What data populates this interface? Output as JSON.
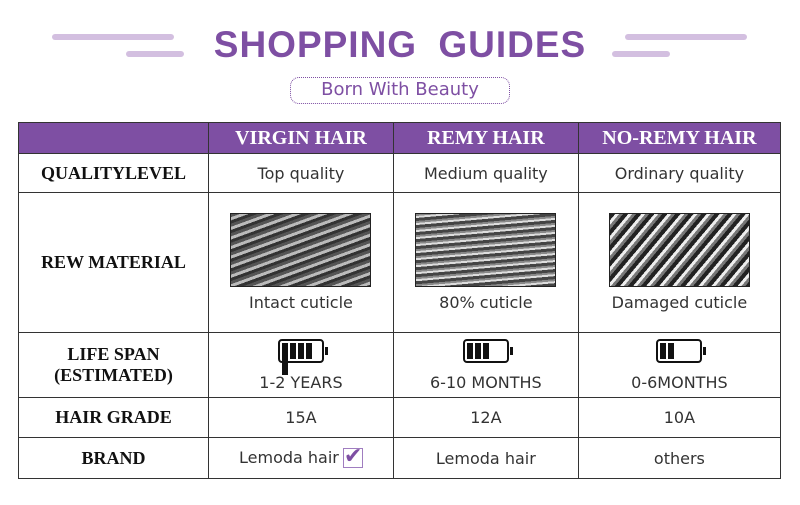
{
  "header": {
    "title": "SHOPPING GUIDES",
    "subtitle": "Born With Beauty"
  },
  "colors": {
    "accent": "#7e4fa3"
  },
  "table": {
    "columns": [
      "VIRGIN HAIR",
      "REMY HAIR",
      "NO-REMY HAIR"
    ],
    "rows": {
      "quality": {
        "label": "QUALITYLEVEL",
        "values": [
          "Top quality",
          "Medium quality",
          "Ordinary quality"
        ]
      },
      "material": {
        "label": "REW MATERIAL",
        "values": [
          "Intact cuticle",
          "80% cuticle",
          "Damaged cuticle"
        ]
      },
      "lifespan": {
        "label1": "LIFE SPAN",
        "label2": "(ESTIMATED)",
        "values": [
          "1-2 YEARS",
          "6-10 MONTHS",
          "0-6MONTHS"
        ],
        "battery_levels_of_5": [
          5,
          3,
          2
        ]
      },
      "grade": {
        "label": "HAIR GRADE",
        "values": [
          "15A",
          "12A",
          "10A"
        ]
      },
      "brand": {
        "label": "BRAND",
        "values": [
          "Lemoda hair",
          "Lemoda hair",
          "others"
        ],
        "checked": [
          true,
          false,
          false
        ]
      }
    }
  }
}
